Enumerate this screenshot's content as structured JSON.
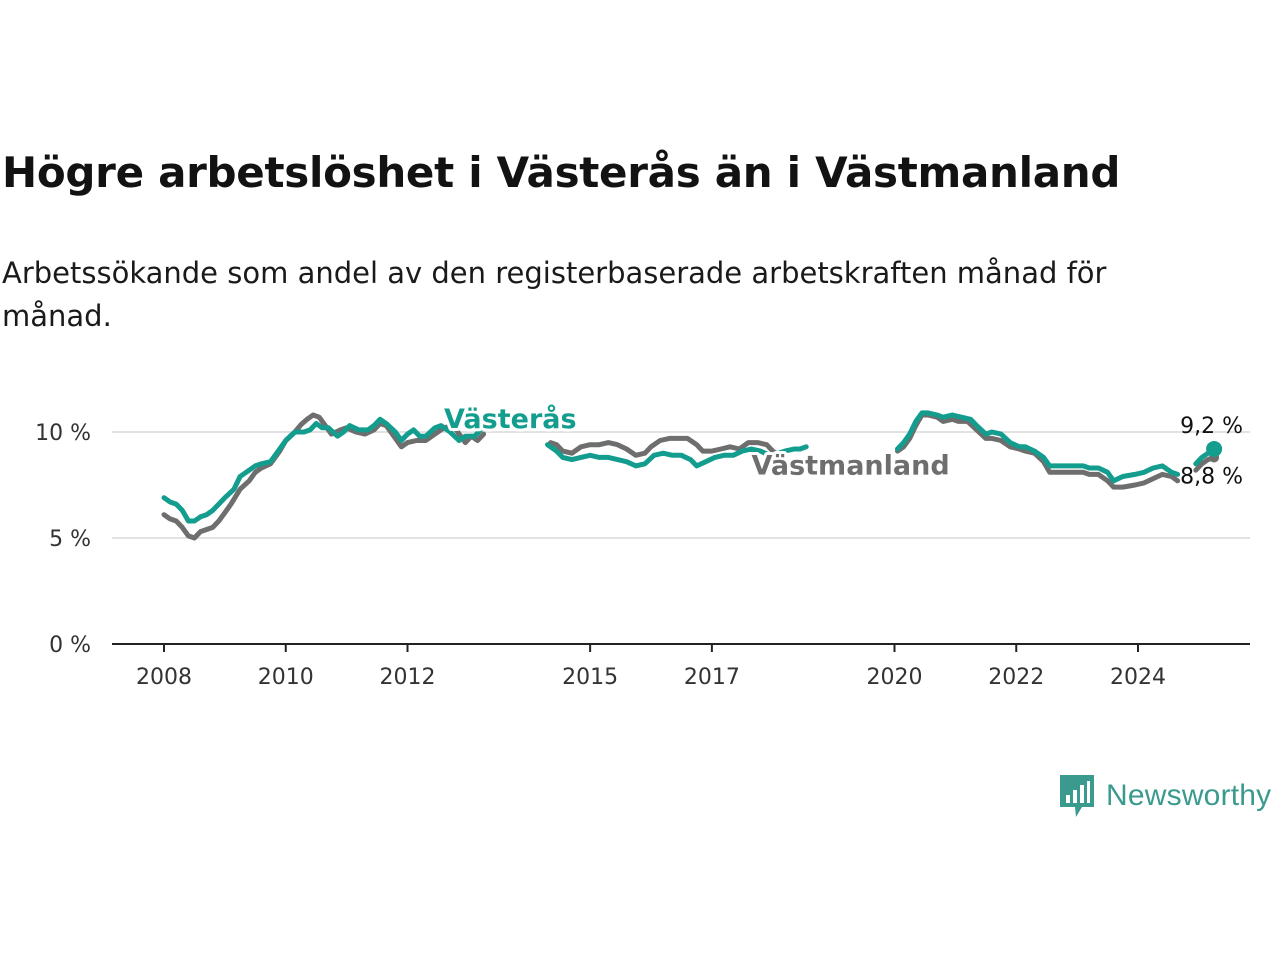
{
  "title": "Högre arbetslöshet i Västerås än i Västmanland",
  "subtitle": "Arbetssökande som andel av den registerbaserade arbetskraften månad för månad.",
  "brand": {
    "name": "Newsworthy",
    "icon": "newsworthy-chart-icon",
    "color": "#3a9a8e"
  },
  "chart_data": {
    "type": "line",
    "title": "Högre arbetslöshet i Västerås än i Västmanland",
    "xlabel": "",
    "ylabel": "",
    "xlim": [
      2007.75,
      2026.4
    ],
    "ylim": [
      0,
      10
    ],
    "x_ticks": [
      2008,
      2010,
      2012,
      2015,
      2017,
      2020,
      2022,
      2024
    ],
    "y_ticks": [
      {
        "value": 0,
        "label": "0 %"
      },
      {
        "value": 5,
        "label": "5 %"
      },
      {
        "value": 10,
        "label": "10 %"
      }
    ],
    "grid": true,
    "legend": "inline labels",
    "series": [
      {
        "name": "Västmanland",
        "color": "#6e6e6e",
        "end_label": "8,8 %",
        "label_at": [
          2017.65,
          8.0
        ],
        "segments": [
          [
            [
              2008.0,
              6.1
            ],
            [
              2008.1,
              5.9
            ],
            [
              2008.2,
              5.8
            ],
            [
              2008.3,
              5.5
            ],
            [
              2008.4,
              5.1
            ],
            [
              2008.5,
              5.0
            ],
            [
              2008.6,
              5.3
            ],
            [
              2008.8,
              5.5
            ],
            [
              2008.9,
              5.8
            ],
            [
              2009.0,
              6.2
            ],
            [
              2009.1,
              6.6
            ],
            [
              2009.25,
              7.3
            ],
            [
              2009.4,
              7.7
            ],
            [
              2009.5,
              8.1
            ],
            [
              2009.6,
              8.3
            ],
            [
              2009.75,
              8.5
            ],
            [
              2009.9,
              9.1
            ],
            [
              2010.0,
              9.6
            ],
            [
              2010.15,
              10.0
            ],
            [
              2010.25,
              10.35
            ],
            [
              2010.35,
              10.6
            ],
            [
              2010.45,
              10.8
            ],
            [
              2010.55,
              10.7
            ],
            [
              2010.65,
              10.3
            ],
            [
              2010.75,
              9.9
            ],
            [
              2010.9,
              10.1
            ],
            [
              2011.0,
              10.2
            ],
            [
              2011.15,
              10.0
            ],
            [
              2011.3,
              9.9
            ],
            [
              2011.45,
              10.1
            ],
            [
              2011.55,
              10.4
            ],
            [
              2011.65,
              10.3
            ],
            [
              2011.75,
              9.9
            ],
            [
              2011.9,
              9.3
            ],
            [
              2012.0,
              9.5
            ],
            [
              2012.15,
              9.6
            ],
            [
              2012.3,
              9.6
            ],
            [
              2012.45,
              9.9
            ],
            [
              2012.6,
              10.2
            ],
            [
              2012.75,
              10.3
            ],
            [
              2012.85,
              9.9
            ],
            [
              2012.95,
              9.5
            ],
            [
              2013.05,
              9.8
            ],
            [
              2013.15,
              9.6
            ],
            [
              2013.25,
              9.9
            ]
          ],
          [
            [
              2014.35,
              9.5
            ],
            [
              2014.45,
              9.4
            ],
            [
              2014.55,
              9.1
            ],
            [
              2014.7,
              9.0
            ],
            [
              2014.85,
              9.3
            ],
            [
              2015.0,
              9.4
            ],
            [
              2015.15,
              9.4
            ],
            [
              2015.3,
              9.5
            ],
            [
              2015.45,
              9.4
            ],
            [
              2015.6,
              9.2
            ],
            [
              2015.75,
              8.9
            ],
            [
              2015.9,
              9.0
            ],
            [
              2016.0,
              9.3
            ],
            [
              2016.15,
              9.6
            ],
            [
              2016.3,
              9.7
            ],
            [
              2016.45,
              9.7
            ],
            [
              2016.6,
              9.7
            ],
            [
              2016.75,
              9.4
            ],
            [
              2016.85,
              9.1
            ],
            [
              2017.0,
              9.1
            ],
            [
              2017.15,
              9.2
            ],
            [
              2017.3,
              9.3
            ],
            [
              2017.45,
              9.2
            ],
            [
              2017.6,
              9.5
            ],
            [
              2017.75,
              9.5
            ],
            [
              2017.9,
              9.4
            ],
            [
              2018.0,
              9.1
            ],
            [
              2018.1,
              8.9
            ]
          ],
          [
            [
              2020.05,
              9.1
            ],
            [
              2020.15,
              9.3
            ],
            [
              2020.25,
              9.7
            ],
            [
              2020.35,
              10.3
            ],
            [
              2020.45,
              10.8
            ],
            [
              2020.55,
              10.8
            ],
            [
              2020.7,
              10.7
            ],
            [
              2020.8,
              10.5
            ],
            [
              2020.95,
              10.6
            ],
            [
              2021.05,
              10.5
            ],
            [
              2021.2,
              10.5
            ],
            [
              2021.35,
              10.1
            ],
            [
              2021.5,
              9.7
            ],
            [
              2021.6,
              9.7
            ],
            [
              2021.75,
              9.6
            ],
            [
              2021.9,
              9.3
            ],
            [
              2022.05,
              9.2
            ],
            [
              2022.15,
              9.1
            ],
            [
              2022.3,
              9.0
            ],
            [
              2022.45,
              8.6
            ],
            [
              2022.55,
              8.1
            ],
            [
              2022.75,
              8.1
            ],
            [
              2022.95,
              8.1
            ],
            [
              2023.1,
              8.1
            ],
            [
              2023.2,
              8.0
            ],
            [
              2023.35,
              8.0
            ],
            [
              2023.5,
              7.7
            ],
            [
              2023.6,
              7.4
            ],
            [
              2023.75,
              7.4
            ],
            [
              2023.95,
              7.5
            ],
            [
              2024.1,
              7.6
            ],
            [
              2024.25,
              7.8
            ],
            [
              2024.4,
              8.0
            ],
            [
              2024.55,
              7.9
            ],
            [
              2024.65,
              7.7
            ]
          ],
          [
            [
              2024.95,
              8.2
            ],
            [
              2025.05,
              8.5
            ],
            [
              2025.15,
              8.7
            ],
            [
              2025.25,
              8.8
            ]
          ]
        ]
      },
      {
        "name": "Västerås",
        "color": "#139d8e",
        "end_label": "9,2 %",
        "label_at": [
          2012.6,
          10.2
        ],
        "segments": [
          [
            [
              2008.0,
              6.9
            ],
            [
              2008.1,
              6.7
            ],
            [
              2008.2,
              6.6
            ],
            [
              2008.3,
              6.3
            ],
            [
              2008.4,
              5.8
            ],
            [
              2008.5,
              5.8
            ],
            [
              2008.6,
              6.0
            ],
            [
              2008.7,
              6.1
            ],
            [
              2008.8,
              6.3
            ],
            [
              2008.9,
              6.6
            ],
            [
              2009.0,
              6.9
            ],
            [
              2009.15,
              7.3
            ],
            [
              2009.25,
              7.9
            ],
            [
              2009.4,
              8.2
            ],
            [
              2009.5,
              8.4
            ],
            [
              2009.6,
              8.5
            ],
            [
              2009.75,
              8.6
            ],
            [
              2009.9,
              9.2
            ],
            [
              2010.0,
              9.6
            ],
            [
              2010.15,
              10.0
            ],
            [
              2010.3,
              10.0
            ],
            [
              2010.4,
              10.1
            ],
            [
              2010.5,
              10.4
            ],
            [
              2010.6,
              10.2
            ],
            [
              2010.7,
              10.2
            ],
            [
              2010.85,
              9.8
            ],
            [
              2010.95,
              10.0
            ],
            [
              2011.05,
              10.3
            ],
            [
              2011.2,
              10.1
            ],
            [
              2011.35,
              10.1
            ],
            [
              2011.45,
              10.3
            ],
            [
              2011.55,
              10.6
            ],
            [
              2011.65,
              10.4
            ],
            [
              2011.8,
              10.0
            ],
            [
              2011.9,
              9.6
            ],
            [
              2012.0,
              9.9
            ],
            [
              2012.1,
              10.1
            ],
            [
              2012.2,
              9.8
            ],
            [
              2012.3,
              9.8
            ],
            [
              2012.45,
              10.2
            ],
            [
              2012.55,
              10.3
            ],
            [
              2012.7,
              10.0
            ],
            [
              2012.85,
              9.6
            ],
            [
              2012.95,
              9.8
            ],
            [
              2013.1,
              9.8
            ],
            [
              2013.2,
              10.1
            ]
          ],
          [
            [
              2014.3,
              9.4
            ],
            [
              2014.45,
              9.1
            ],
            [
              2014.55,
              8.8
            ],
            [
              2014.7,
              8.7
            ],
            [
              2014.85,
              8.8
            ],
            [
              2015.0,
              8.9
            ],
            [
              2015.15,
              8.8
            ],
            [
              2015.3,
              8.8
            ],
            [
              2015.45,
              8.7
            ],
            [
              2015.6,
              8.6
            ],
            [
              2015.75,
              8.4
            ],
            [
              2015.9,
              8.5
            ],
            [
              2016.05,
              8.9
            ],
            [
              2016.2,
              9.0
            ],
            [
              2016.35,
              8.9
            ],
            [
              2016.5,
              8.9
            ],
            [
              2016.65,
              8.7
            ],
            [
              2016.75,
              8.4
            ],
            [
              2016.9,
              8.6
            ],
            [
              2017.05,
              8.8
            ],
            [
              2017.2,
              8.9
            ],
            [
              2017.35,
              8.9
            ],
            [
              2017.5,
              9.1
            ],
            [
              2017.65,
              9.2
            ],
            [
              2017.8,
              9.1
            ],
            [
              2017.95,
              8.9
            ],
            [
              2018.1,
              9.0
            ],
            [
              2018.2,
              9.1
            ],
            [
              2018.35,
              9.2
            ],
            [
              2018.45,
              9.2
            ],
            [
              2018.55,
              9.3
            ]
          ],
          [
            [
              2020.05,
              9.2
            ],
            [
              2020.15,
              9.5
            ],
            [
              2020.25,
              9.9
            ],
            [
              2020.35,
              10.5
            ],
            [
              2020.45,
              10.9
            ],
            [
              2020.55,
              10.9
            ],
            [
              2020.7,
              10.8
            ],
            [
              2020.8,
              10.7
            ],
            [
              2020.95,
              10.8
            ],
            [
              2021.1,
              10.7
            ],
            [
              2021.25,
              10.6
            ],
            [
              2021.35,
              10.3
            ],
            [
              2021.5,
              9.9
            ],
            [
              2021.6,
              10.0
            ],
            [
              2021.75,
              9.9
            ],
            [
              2021.9,
              9.5
            ],
            [
              2022.05,
              9.3
            ],
            [
              2022.15,
              9.3
            ],
            [
              2022.3,
              9.1
            ],
            [
              2022.45,
              8.8
            ],
            [
              2022.55,
              8.4
            ],
            [
              2022.75,
              8.4
            ],
            [
              2022.95,
              8.4
            ],
            [
              2023.1,
              8.4
            ],
            [
              2023.2,
              8.3
            ],
            [
              2023.35,
              8.3
            ],
            [
              2023.5,
              8.1
            ],
            [
              2023.6,
              7.7
            ],
            [
              2023.75,
              7.9
            ],
            [
              2023.95,
              8.0
            ],
            [
              2024.1,
              8.1
            ],
            [
              2024.25,
              8.3
            ],
            [
              2024.4,
              8.4
            ],
            [
              2024.55,
              8.1
            ],
            [
              2024.65,
              8.0
            ]
          ],
          [
            [
              2024.95,
              8.5
            ],
            [
              2025.05,
              8.8
            ],
            [
              2025.15,
              9.0
            ],
            [
              2025.25,
              9.2
            ]
          ]
        ]
      }
    ]
  }
}
